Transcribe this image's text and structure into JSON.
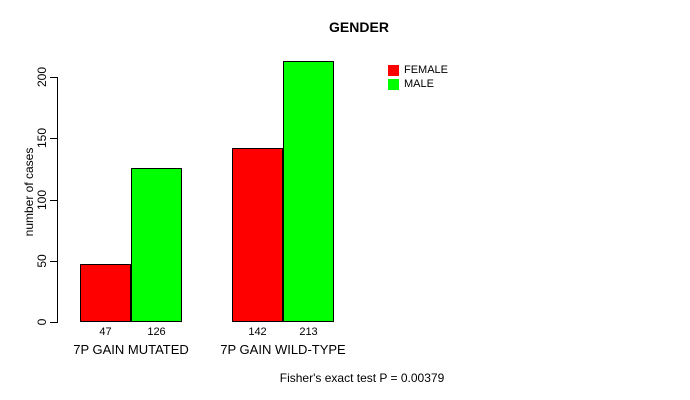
{
  "chart_data": {
    "type": "bar",
    "title": "GENDER",
    "categories": [
      "7P GAIN MUTATED",
      "7P GAIN WILD-TYPE"
    ],
    "series": [
      {
        "name": "FEMALE",
        "color": "#ff0000",
        "values": [
          47,
          142
        ]
      },
      {
        "name": "MALE",
        "color": "#00ff00",
        "values": [
          126,
          213
        ]
      }
    ],
    "value_labels": [
      [
        47,
        126
      ],
      [
        142,
        213
      ]
    ],
    "xlabel": "",
    "ylabel": "number of cases",
    "ylim": [
      0,
      215
    ],
    "yticks": [
      0,
      50,
      100,
      150,
      200
    ],
    "grid": false,
    "legend_position": "topright",
    "bar_border_color": "#000000",
    "annotation": "Fisher's exact test P = 0.00379"
  }
}
